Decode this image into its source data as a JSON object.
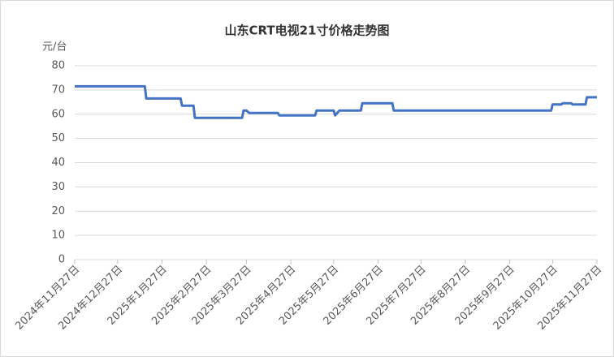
{
  "chart_data": {
    "type": "line",
    "title": "山东CRT电视21寸价格走势图",
    "y_label": "元/台",
    "x": [
      "2024-11-27",
      "2025-01-15",
      "2025-01-16",
      "2025-02-09",
      "2025-02-10",
      "2025-02-18",
      "2025-02-19",
      "2025-03-24",
      "2025-03-25",
      "2025-03-27",
      "2025-03-29",
      "2025-04-18",
      "2025-04-19",
      "2025-05-14",
      "2025-05-15",
      "2025-05-27",
      "2025-05-28",
      "2025-05-31",
      "2025-06-15",
      "2025-06-16",
      "2025-07-07",
      "2025-07-08",
      "2025-10-26",
      "2025-10-27",
      "2025-11-02",
      "2025-11-03",
      "2025-11-09",
      "2025-11-10",
      "2025-11-19",
      "2025-11-20",
      "2025-11-27"
    ],
    "series": [
      {
        "name": "山东CRT电视21寸",
        "color": "#4472c4",
        "values": [
          71.5,
          71.5,
          66.5,
          66.5,
          63.5,
          63.5,
          58.5,
          58.5,
          61.5,
          61.5,
          60.5,
          60.5,
          59.5,
          59.5,
          61.5,
          61.5,
          59.5,
          61.5,
          61.5,
          64.5,
          64.5,
          61.5,
          61.5,
          64,
          64,
          64.5,
          64.5,
          64,
          64,
          67,
          67
        ]
      }
    ],
    "xlim": [
      "2024-11-27",
      "2025-11-27"
    ],
    "xticks": [
      {
        "value": "2024-11-27",
        "label": "2024年11月27日"
      },
      {
        "value": "2024-12-27",
        "label": "2024年12月27日"
      },
      {
        "value": "2025-01-27",
        "label": "2025年1月27日"
      },
      {
        "value": "2025-02-27",
        "label": "2025年2月27日"
      },
      {
        "value": "2025-03-27",
        "label": "2025年3月27日"
      },
      {
        "value": "2025-04-27",
        "label": "2025年4月27日"
      },
      {
        "value": "2025-05-27",
        "label": "2025年5月27日"
      },
      {
        "value": "2025-06-27",
        "label": "2025年6月27日"
      },
      {
        "value": "2025-07-27",
        "label": "2025年7月27日"
      },
      {
        "value": "2025-08-27",
        "label": "2025年8月27日"
      },
      {
        "value": "2025-09-27",
        "label": "2025年9月27日"
      },
      {
        "value": "2025-10-27",
        "label": "2025年10月27日"
      },
      {
        "value": "2025-11-27",
        "label": "2025年11月27日"
      }
    ],
    "ylim": [
      0,
      80
    ],
    "yticks": [
      0,
      10,
      20,
      30,
      40,
      50,
      60,
      70,
      80
    ],
    "grid": true
  }
}
